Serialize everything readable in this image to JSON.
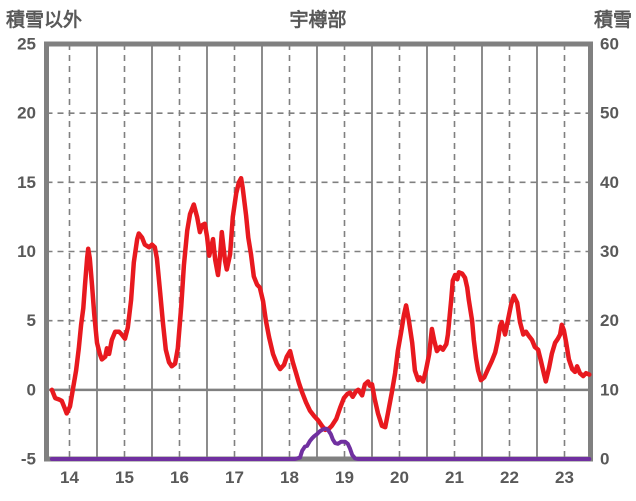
{
  "title": "宇樽部",
  "left_axis": {
    "label": "積雪以外",
    "ticks": [
      25,
      20,
      15,
      10,
      5,
      0,
      -5
    ],
    "min": -5,
    "max": 25
  },
  "right_axis": {
    "label": "積雪",
    "ticks": [
      60,
      50,
      40,
      30,
      20,
      10,
      0
    ],
    "min": 0,
    "max": 60
  },
  "x_axis": {
    "labels": [
      "14",
      "15",
      "16",
      "17",
      "18",
      "19",
      "20",
      "21",
      "22",
      "23"
    ],
    "day_start": 14,
    "day_end": 24
  },
  "colors": {
    "red_series": "#e8191f",
    "purple_series": "#7030a0",
    "grid": "#808080",
    "text": "#595959",
    "background": "#ffffff"
  },
  "chart_data": {
    "type": "line",
    "title": "宇樽部",
    "xlabel": "",
    "ylabel_left": "積雪以外",
    "ylabel_right": "積雪",
    "x_range": [
      14,
      24
    ],
    "left_ylim": [
      -5,
      25
    ],
    "right_ylim": [
      0,
      60
    ],
    "grid": "on",
    "legend_position": "none",
    "series": [
      {
        "name": "積雪以外",
        "axis": "left",
        "color": "#e8191f",
        "points": [
          [
            14.18,
            0.0
          ],
          [
            14.24,
            -0.6
          ],
          [
            14.31,
            -0.7
          ],
          [
            14.36,
            -0.8
          ],
          [
            14.42,
            -1.4
          ],
          [
            14.45,
            -1.7
          ],
          [
            14.51,
            -1.2
          ],
          [
            14.56,
            0.0
          ],
          [
            14.62,
            1.4
          ],
          [
            14.67,
            3.0
          ],
          [
            14.71,
            4.7
          ],
          [
            14.75,
            5.9
          ],
          [
            14.78,
            7.5
          ],
          [
            14.82,
            9.5
          ],
          [
            14.84,
            10.2
          ],
          [
            14.87,
            9.5
          ],
          [
            14.91,
            7.5
          ],
          [
            14.95,
            5.5
          ],
          [
            15.0,
            3.4
          ],
          [
            15.05,
            2.6
          ],
          [
            15.09,
            2.2
          ],
          [
            15.15,
            2.4
          ],
          [
            15.18,
            3.0
          ],
          [
            15.22,
            2.6
          ],
          [
            15.27,
            3.6
          ],
          [
            15.33,
            4.2
          ],
          [
            15.4,
            4.2
          ],
          [
            15.45,
            4.0
          ],
          [
            15.51,
            3.7
          ],
          [
            15.56,
            4.5
          ],
          [
            15.62,
            6.5
          ],
          [
            15.67,
            9.2
          ],
          [
            15.73,
            10.9
          ],
          [
            15.76,
            11.3
          ],
          [
            15.82,
            11.0
          ],
          [
            15.87,
            10.5
          ],
          [
            15.95,
            10.3
          ],
          [
            16.0,
            10.5
          ],
          [
            16.05,
            10.3
          ],
          [
            16.09,
            9.5
          ],
          [
            16.15,
            7.0
          ],
          [
            16.2,
            4.8
          ],
          [
            16.25,
            2.9
          ],
          [
            16.31,
            2.0
          ],
          [
            16.36,
            1.7
          ],
          [
            16.42,
            1.9
          ],
          [
            16.47,
            3.0
          ],
          [
            16.53,
            6.0
          ],
          [
            16.58,
            9.0
          ],
          [
            16.64,
            11.5
          ],
          [
            16.69,
            12.7
          ],
          [
            16.76,
            13.4
          ],
          [
            16.82,
            12.5
          ],
          [
            16.87,
            11.4
          ],
          [
            16.91,
            11.9
          ],
          [
            16.96,
            12.0
          ],
          [
            17.0,
            11.1
          ],
          [
            17.04,
            9.7
          ],
          [
            17.07,
            10.2
          ],
          [
            17.11,
            10.9
          ],
          [
            17.15,
            9.4
          ],
          [
            17.2,
            8.3
          ],
          [
            17.24,
            9.8
          ],
          [
            17.27,
            11.4
          ],
          [
            17.33,
            9.3
          ],
          [
            17.36,
            8.7
          ],
          [
            17.42,
            9.8
          ],
          [
            17.47,
            12.5
          ],
          [
            17.53,
            14.2
          ],
          [
            17.58,
            15.0
          ],
          [
            17.62,
            15.3
          ],
          [
            17.65,
            14.6
          ],
          [
            17.71,
            12.6
          ],
          [
            17.75,
            11.0
          ],
          [
            17.8,
            9.8
          ],
          [
            17.85,
            8.2
          ],
          [
            17.91,
            7.6
          ],
          [
            17.96,
            7.4
          ],
          [
            18.02,
            6.4
          ],
          [
            18.07,
            5.0
          ],
          [
            18.13,
            3.8
          ],
          [
            18.2,
            2.6
          ],
          [
            18.27,
            1.9
          ],
          [
            18.33,
            1.5
          ],
          [
            18.4,
            1.8
          ],
          [
            18.45,
            2.4
          ],
          [
            18.51,
            2.8
          ],
          [
            18.56,
            2.0
          ],
          [
            18.62,
            1.2
          ],
          [
            18.67,
            0.5
          ],
          [
            18.73,
            -0.2
          ],
          [
            18.8,
            -0.9
          ],
          [
            18.87,
            -1.5
          ],
          [
            18.95,
            -1.9
          ],
          [
            19.02,
            -2.2
          ],
          [
            19.09,
            -2.6
          ],
          [
            19.15,
            -2.9
          ],
          [
            19.22,
            -2.8
          ],
          [
            19.27,
            -2.6
          ],
          [
            19.35,
            -2.1
          ],
          [
            19.42,
            -1.3
          ],
          [
            19.49,
            -0.6
          ],
          [
            19.55,
            -0.3
          ],
          [
            19.6,
            -0.2
          ],
          [
            19.65,
            -0.5
          ],
          [
            19.71,
            -0.1
          ],
          [
            19.75,
            0.0
          ],
          [
            19.82,
            -0.4
          ],
          [
            19.87,
            0.4
          ],
          [
            19.93,
            0.6
          ],
          [
            19.96,
            0.3
          ],
          [
            20.0,
            0.4
          ],
          [
            20.05,
            -0.7
          ],
          [
            20.11,
            -1.7
          ],
          [
            20.18,
            -2.6
          ],
          [
            20.24,
            -2.7
          ],
          [
            20.29,
            -1.7
          ],
          [
            20.36,
            -0.2
          ],
          [
            20.42,
            1.2
          ],
          [
            20.47,
            2.8
          ],
          [
            20.53,
            4.2
          ],
          [
            20.58,
            5.4
          ],
          [
            20.62,
            6.1
          ],
          [
            20.67,
            5.0
          ],
          [
            20.73,
            3.4
          ],
          [
            20.78,
            1.4
          ],
          [
            20.84,
            0.7
          ],
          [
            20.87,
            0.9
          ],
          [
            20.93,
            0.6
          ],
          [
            20.98,
            1.4
          ],
          [
            21.04,
            2.6
          ],
          [
            21.09,
            4.4
          ],
          [
            21.13,
            3.6
          ],
          [
            21.18,
            2.8
          ],
          [
            21.24,
            3.1
          ],
          [
            21.29,
            2.9
          ],
          [
            21.35,
            3.3
          ],
          [
            21.38,
            4.0
          ],
          [
            21.44,
            6.5
          ],
          [
            21.47,
            7.9
          ],
          [
            21.51,
            8.3
          ],
          [
            21.55,
            8.0
          ],
          [
            21.58,
            8.5
          ],
          [
            21.64,
            8.4
          ],
          [
            21.69,
            8.1
          ],
          [
            21.73,
            7.4
          ],
          [
            21.76,
            6.5
          ],
          [
            21.82,
            5.0
          ],
          [
            21.85,
            3.6
          ],
          [
            21.89,
            2.3
          ],
          [
            21.93,
            1.4
          ],
          [
            21.98,
            0.7
          ],
          [
            22.04,
            0.9
          ],
          [
            22.11,
            1.5
          ],
          [
            22.18,
            2.1
          ],
          [
            22.24,
            2.7
          ],
          [
            22.29,
            3.6
          ],
          [
            22.33,
            4.6
          ],
          [
            22.36,
            4.9
          ],
          [
            22.42,
            4.0
          ],
          [
            22.47,
            5.0
          ],
          [
            22.53,
            6.2
          ],
          [
            22.58,
            6.8
          ],
          [
            22.64,
            6.3
          ],
          [
            22.69,
            4.9
          ],
          [
            22.75,
            4.0
          ],
          [
            22.8,
            4.2
          ],
          [
            22.85,
            3.9
          ],
          [
            22.91,
            3.6
          ],
          [
            22.96,
            3.1
          ],
          [
            23.02,
            2.9
          ],
          [
            23.07,
            2.1
          ],
          [
            23.13,
            1.1
          ],
          [
            23.16,
            0.6
          ],
          [
            23.22,
            1.6
          ],
          [
            23.27,
            2.6
          ],
          [
            23.33,
            3.4
          ],
          [
            23.38,
            3.7
          ],
          [
            23.42,
            4.0
          ],
          [
            23.45,
            4.7
          ],
          [
            23.49,
            4.3
          ],
          [
            23.53,
            3.4
          ],
          [
            23.58,
            2.2
          ],
          [
            23.64,
            1.5
          ],
          [
            23.69,
            1.3
          ],
          [
            23.73,
            1.7
          ],
          [
            23.78,
            1.2
          ],
          [
            23.84,
            1.0
          ],
          [
            23.89,
            1.2
          ],
          [
            23.95,
            1.1
          ]
        ]
      },
      {
        "name": "積雪",
        "axis": "right",
        "color": "#7030a0",
        "points": [
          [
            14.18,
            0
          ],
          [
            18.6,
            0
          ],
          [
            18.69,
            0.2
          ],
          [
            18.73,
            1.2
          ],
          [
            18.78,
            1.8
          ],
          [
            18.82,
            1.9
          ],
          [
            18.87,
            2.6
          ],
          [
            18.91,
            3.0
          ],
          [
            18.95,
            3.3
          ],
          [
            19.0,
            3.6
          ],
          [
            19.05,
            4.0
          ],
          [
            19.11,
            4.3
          ],
          [
            19.16,
            4.4
          ],
          [
            19.2,
            4.2
          ],
          [
            19.25,
            3.6
          ],
          [
            19.29,
            2.8
          ],
          [
            19.33,
            2.3
          ],
          [
            19.38,
            2.2
          ],
          [
            19.44,
            2.5
          ],
          [
            19.51,
            2.5
          ],
          [
            19.56,
            2.2
          ],
          [
            19.6,
            1.5
          ],
          [
            19.64,
            0.6
          ],
          [
            19.69,
            0.1
          ],
          [
            19.75,
            0
          ],
          [
            23.95,
            0
          ]
        ]
      }
    ]
  }
}
